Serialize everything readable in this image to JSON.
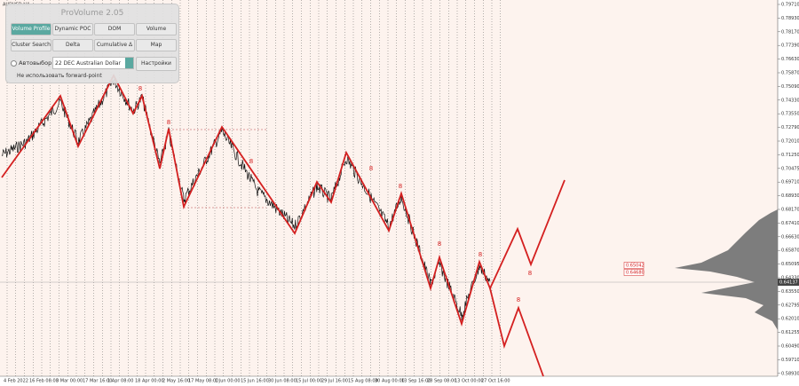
{
  "window_title": "AUDUSD,H4",
  "panel": {
    "title": "ProVolume 2.05",
    "buttons": [
      "Volume Profile",
      "Dynamic POC",
      "DOM",
      "Volume",
      "Cluster Search",
      "Delta",
      "Cumulative Δ",
      "Map"
    ],
    "auto_select": "Автовыбор",
    "instrument": "22 DEC Australian Dollar",
    "settings": "Настройки",
    "forward_point": "Не использовать forward-point"
  },
  "price_axis": {
    "labels": [
      "0.79710",
      "0.78930",
      "0.78170",
      "0.77390",
      "0.76630",
      "0.75870",
      "0.75090",
      "0.74330",
      "0.73550",
      "0.72790",
      "0.72010",
      "0.71250",
      "0.70475",
      "0.69710",
      "0.68930",
      "0.68170",
      "0.67410",
      "0.66630",
      "0.65870",
      "0.65095",
      "0.64330",
      "0.63550",
      "0.62795",
      "0.62010",
      "0.61255",
      "0.60490",
      "0.59710",
      "0.58930"
    ],
    "current": "0.64137"
  },
  "time_axis": {
    "labels": [
      "4 Feb 2022",
      "16 Feb 08:00",
      "3 Mar 00:00",
      "17 Mar 16:00",
      "1 Apr 08:00",
      "18 Apr 00:00",
      "2 May 16:00",
      "17 May 08:00",
      "1 Jun 00:00",
      "15 Jun 16:00",
      "30 Jun 08:00",
      "15 Jul 00:00",
      "29 Jul 16:00",
      "15 Aug 08:00",
      "30 Aug 00:00",
      "13 Sep 16:00",
      "28 Sep 08:00",
      "13 Oct 00:00",
      "27 Oct 16:00"
    ]
  },
  "levels": [
    "0.65042",
    "0.64680"
  ],
  "wave_labels": [
    "8",
    "8",
    "8",
    "8",
    "8",
    "8",
    "8",
    "8",
    "8"
  ]
}
